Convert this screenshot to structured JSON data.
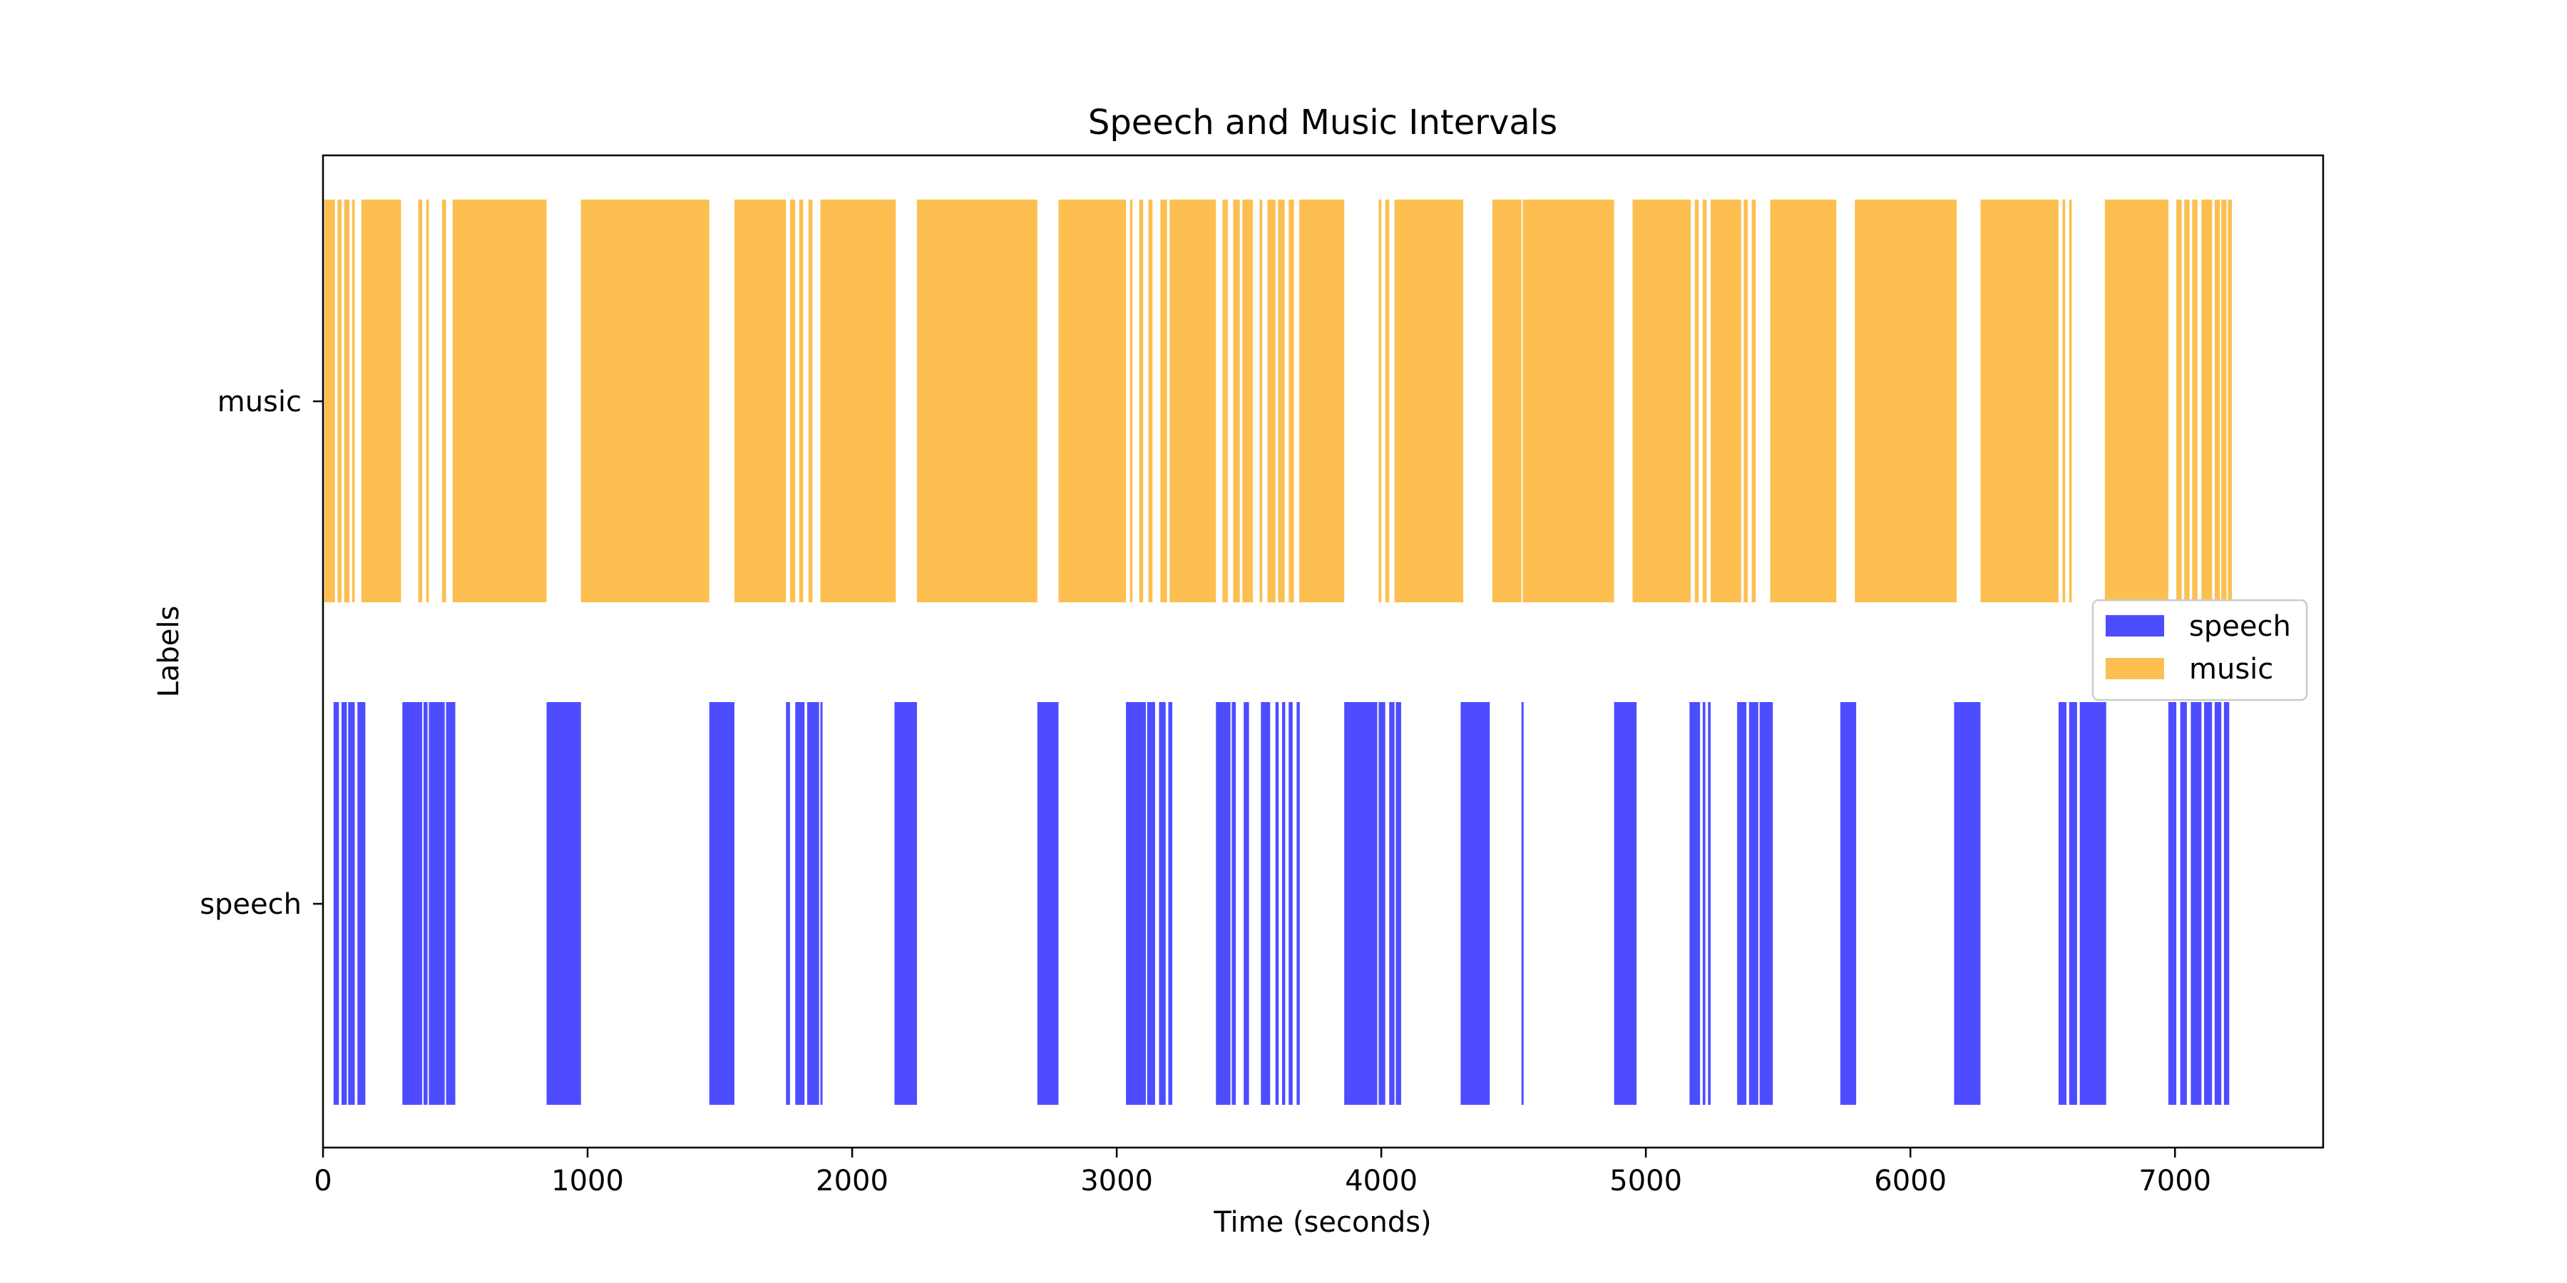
{
  "chart_data": {
    "type": "broken-bar",
    "title": "Speech and Music Intervals",
    "xlabel": "Time (seconds)",
    "ylabel": "Labels",
    "xlim": [
      0,
      7560
    ],
    "x_ticks": [
      0,
      1000,
      2000,
      3000,
      4000,
      5000,
      6000,
      7000
    ],
    "categories": [
      "music",
      "speech"
    ],
    "grid": false,
    "legend_position": "center-right",
    "series": [
      {
        "name": "speech",
        "color": "#4d4dff",
        "row": "speech",
        "intervals": [
          [
            40,
            20
          ],
          [
            70,
            20
          ],
          [
            95,
            25
          ],
          [
            130,
            30
          ],
          [
            300,
            75
          ],
          [
            380,
            15
          ],
          [
            400,
            60
          ],
          [
            465,
            35
          ],
          [
            845,
            130
          ],
          [
            1460,
            95
          ],
          [
            1750,
            15
          ],
          [
            1785,
            35
          ],
          [
            1830,
            45
          ],
          [
            1880,
            8
          ],
          [
            2160,
            85
          ],
          [
            2700,
            80
          ],
          [
            3035,
            75
          ],
          [
            3115,
            30
          ],
          [
            3160,
            25
          ],
          [
            3195,
            15
          ],
          [
            3375,
            55
          ],
          [
            3435,
            15
          ],
          [
            3480,
            20
          ],
          [
            3545,
            35
          ],
          [
            3600,
            12
          ],
          [
            3625,
            12
          ],
          [
            3650,
            15
          ],
          [
            3680,
            12
          ],
          [
            3860,
            125
          ],
          [
            3990,
            25
          ],
          [
            4030,
            20
          ],
          [
            4055,
            20
          ],
          [
            4300,
            110
          ],
          [
            4530,
            8
          ],
          [
            4880,
            85
          ],
          [
            5165,
            40
          ],
          [
            5215,
            10
          ],
          [
            5235,
            10
          ],
          [
            5345,
            35
          ],
          [
            5390,
            35
          ],
          [
            5430,
            50
          ],
          [
            5735,
            60
          ],
          [
            6165,
            100
          ],
          [
            6560,
            30
          ],
          [
            6600,
            30
          ],
          [
            6640,
            100
          ],
          [
            6975,
            30
          ],
          [
            7020,
            25
          ],
          [
            7060,
            40
          ],
          [
            7110,
            30
          ],
          [
            7150,
            25
          ],
          [
            7185,
            20
          ]
        ]
      },
      {
        "name": "music",
        "color": "#fcbf50",
        "row": "music",
        "intervals": [
          [
            5,
            40
          ],
          [
            55,
            15
          ],
          [
            80,
            20
          ],
          [
            110,
            10
          ],
          [
            145,
            150
          ],
          [
            360,
            15
          ],
          [
            390,
            10
          ],
          [
            450,
            15
          ],
          [
            490,
            355
          ],
          [
            975,
            485
          ],
          [
            1555,
            195
          ],
          [
            1765,
            20
          ],
          [
            1800,
            15
          ],
          [
            1835,
            15
          ],
          [
            1880,
            285
          ],
          [
            2245,
            455
          ],
          [
            2780,
            255
          ],
          [
            3050,
            10
          ],
          [
            3085,
            15
          ],
          [
            3120,
            15
          ],
          [
            3165,
            25
          ],
          [
            3200,
            175
          ],
          [
            3400,
            20
          ],
          [
            3440,
            25
          ],
          [
            3475,
            40
          ],
          [
            3540,
            10
          ],
          [
            3570,
            30
          ],
          [
            3610,
            25
          ],
          [
            3650,
            20
          ],
          [
            3690,
            170
          ],
          [
            3990,
            10
          ],
          [
            4015,
            15
          ],
          [
            4050,
            260
          ],
          [
            4420,
            110
          ],
          [
            4535,
            345
          ],
          [
            4950,
            220
          ],
          [
            5185,
            15
          ],
          [
            5215,
            15
          ],
          [
            5245,
            115
          ],
          [
            5370,
            15
          ],
          [
            5400,
            15
          ],
          [
            5470,
            250
          ],
          [
            5790,
            385
          ],
          [
            6265,
            295
          ],
          [
            6575,
            10
          ],
          [
            6600,
            10
          ],
          [
            6735,
            240
          ],
          [
            7005,
            20
          ],
          [
            7035,
            20
          ],
          [
            7065,
            20
          ],
          [
            7100,
            40
          ],
          [
            7150,
            20
          ],
          [
            7175,
            20
          ],
          [
            7200,
            15
          ]
        ]
      }
    ]
  }
}
